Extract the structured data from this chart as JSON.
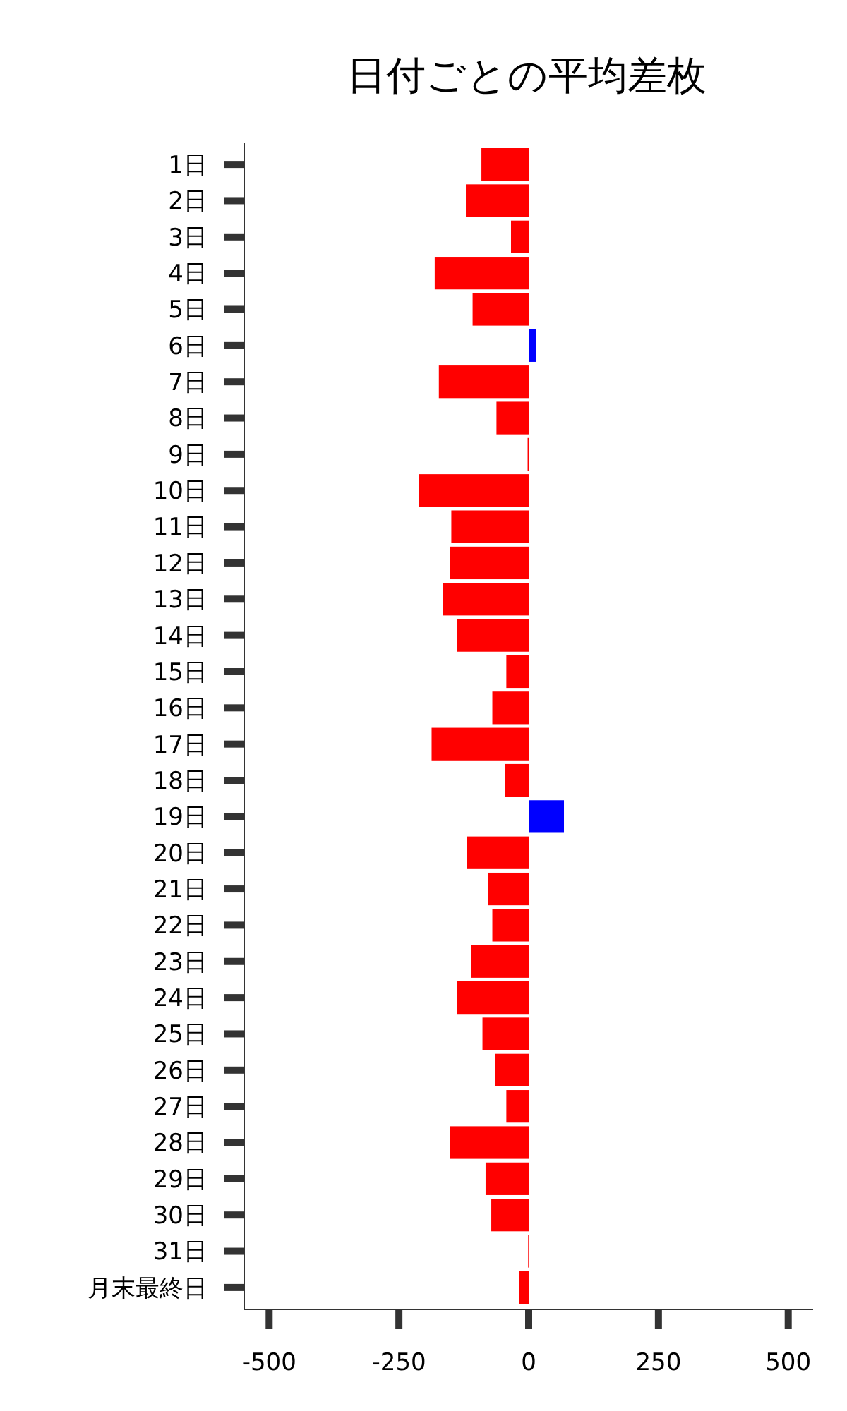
{
  "chart_data": {
    "type": "bar",
    "title": "日付ごとの平均差枚",
    "orientation": "horizontal",
    "categories": [
      "1日",
      "2日",
      "3日",
      "4日",
      "5日",
      "6日",
      "7日",
      "8日",
      "9日",
      "10日",
      "11日",
      "12日",
      "13日",
      "14日",
      "15日",
      "16日",
      "17日",
      "18日",
      "19日",
      "20日",
      "21日",
      "22日",
      "23日",
      "24日",
      "25日",
      "26日",
      "27日",
      "28日",
      "29日",
      "30日",
      "31日",
      "月末最終日"
    ],
    "values": [
      -91,
      -121,
      -34,
      -181,
      -108,
      14,
      -173,
      -62,
      -2,
      -211,
      -149,
      -151,
      -165,
      -138,
      -43,
      -70,
      -187,
      -45,
      68,
      -119,
      -78,
      -70,
      -111,
      -138,
      -89,
      -64,
      -43,
      -151,
      -83,
      -72,
      -1,
      -18
    ],
    "colors": [
      "#ff0000",
      "#ff0000",
      "#ff0000",
      "#ff0000",
      "#ff0000",
      "#0000ff",
      "#ff0000",
      "#ff0000",
      "#ff0000",
      "#ff0000",
      "#ff0000",
      "#ff0000",
      "#ff0000",
      "#ff0000",
      "#ff0000",
      "#ff0000",
      "#ff0000",
      "#ff0000",
      "#0000ff",
      "#ff0000",
      "#ff0000",
      "#ff0000",
      "#ff0000",
      "#ff0000",
      "#ff0000",
      "#ff0000",
      "#ff0000",
      "#ff0000",
      "#ff0000",
      "#ff0000",
      "#ff0000",
      "#ff0000"
    ],
    "xlim": [
      -548,
      548
    ],
    "xticks": [
      -500,
      -250,
      0,
      250,
      500
    ],
    "grid": false
  }
}
